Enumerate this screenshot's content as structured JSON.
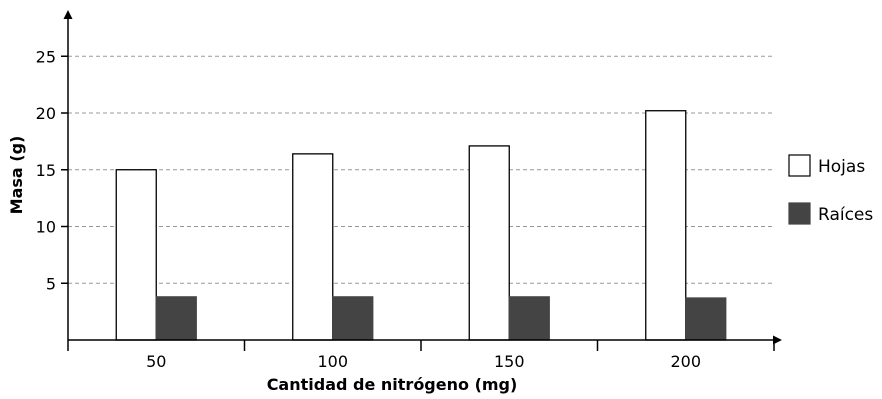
{
  "chart_data": {
    "type": "bar",
    "title": "",
    "xlabel": "Cantidad de nitrógeno (mg)",
    "ylabel": "Masa (g)",
    "categories": [
      "50",
      "100",
      "150",
      "200"
    ],
    "series": [
      {
        "name": "Hojas",
        "values": [
          15.0,
          16.4,
          17.1,
          20.2
        ],
        "color": "#ffffff"
      },
      {
        "name": "Raíces",
        "values": [
          3.8,
          3.8,
          3.8,
          3.7
        ],
        "color": "#444444"
      }
    ],
    "yticks": [
      "5",
      "10",
      "15",
      "20",
      "25"
    ],
    "ytick_values": [
      5,
      10,
      15,
      20,
      25
    ],
    "ylim": [
      0,
      28
    ],
    "grid": "horizontal dashed",
    "legend_position": "right"
  }
}
